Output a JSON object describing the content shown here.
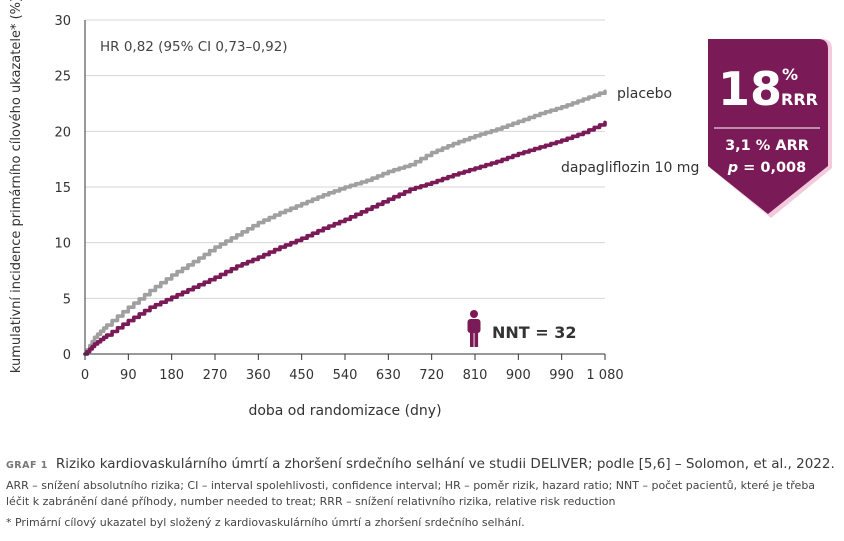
{
  "chart_data": {
    "type": "line",
    "ylabel": "kumulativní incidence primárního cílového ukazatele* (%)",
    "xlabel": "doba od randomizace (dny)",
    "ylim": [
      0,
      30
    ],
    "xlim": [
      0,
      1080
    ],
    "yticks": [
      "0",
      "5",
      "10",
      "15",
      "20",
      "25",
      "30"
    ],
    "xticks": [
      "0",
      "90",
      "180",
      "270",
      "360",
      "450",
      "540",
      "630",
      "720",
      "810",
      "900",
      "990",
      "1 080"
    ],
    "xtick_values": [
      0,
      90,
      180,
      270,
      360,
      450,
      540,
      630,
      720,
      810,
      900,
      990,
      1080
    ],
    "hr_annotation": "HR 0,82 (95% CI 0,73–0,92)",
    "series": [
      {
        "name": "placebo",
        "color": "#a0a0a0",
        "x": [
          0,
          20,
          45,
          90,
          135,
          180,
          225,
          270,
          315,
          360,
          405,
          450,
          495,
          540,
          585,
          630,
          675,
          720,
          765,
          810,
          855,
          900,
          945,
          990,
          1035,
          1080
        ],
        "y": [
          0,
          1.5,
          2.6,
          4.2,
          5.7,
          7.1,
          8.3,
          9.6,
          10.7,
          11.8,
          12.7,
          13.5,
          14.3,
          15.0,
          15.6,
          16.4,
          17.0,
          18.1,
          18.9,
          19.6,
          20.2,
          20.9,
          21.6,
          22.2,
          22.9,
          23.6
        ]
      },
      {
        "name": "dapagliflozin 10 mg",
        "color": "#7a1a57",
        "x": [
          0,
          20,
          45,
          90,
          135,
          180,
          225,
          270,
          315,
          360,
          405,
          450,
          495,
          540,
          585,
          630,
          675,
          720,
          765,
          810,
          855,
          900,
          945,
          990,
          1035,
          1080
        ],
        "y": [
          0,
          0.9,
          1.7,
          3.0,
          4.2,
          5.1,
          6.0,
          6.9,
          7.9,
          8.7,
          9.6,
          10.4,
          11.3,
          12.1,
          13.0,
          13.9,
          14.8,
          15.4,
          16.1,
          16.7,
          17.3,
          18.0,
          18.6,
          19.2,
          19.9,
          20.8
        ]
      }
    ],
    "nnt_label": "NNT = 32",
    "badge": {
      "rrr_value": "18",
      "rrr_percent": "%",
      "rrr_label": "RRR",
      "arr": "3,1 % ARR",
      "p_prefix": "p",
      "p_value": " = 0,008"
    }
  },
  "caption": {
    "graf": "GRAF 1",
    "title": "Riziko kardiovaskulárního úmrtí a zhoršení srdečního selhání ve studii DELIVER; podle [5,6] – Solomon, et al., 2022.",
    "abbreviations": "ARR – snížení absolutního rizika; CI – interval spolehlivosti, confidence interval; HR – poměr rizik, hazard ratio; NNT – počet pacientů, které je třeba léčit k zabránění dané příhody, number needed to treat; RRR – snížení relativního rizika, relative risk reduction",
    "footnote": "* Primární cílový ukazatel byl složený z kardiovaskulárního úmrtí a zhoršení srdečního selhání."
  },
  "colors": {
    "accent": "#7a1a57",
    "placebo": "#a0a0a0",
    "badge_border": "#f3c9dc"
  }
}
